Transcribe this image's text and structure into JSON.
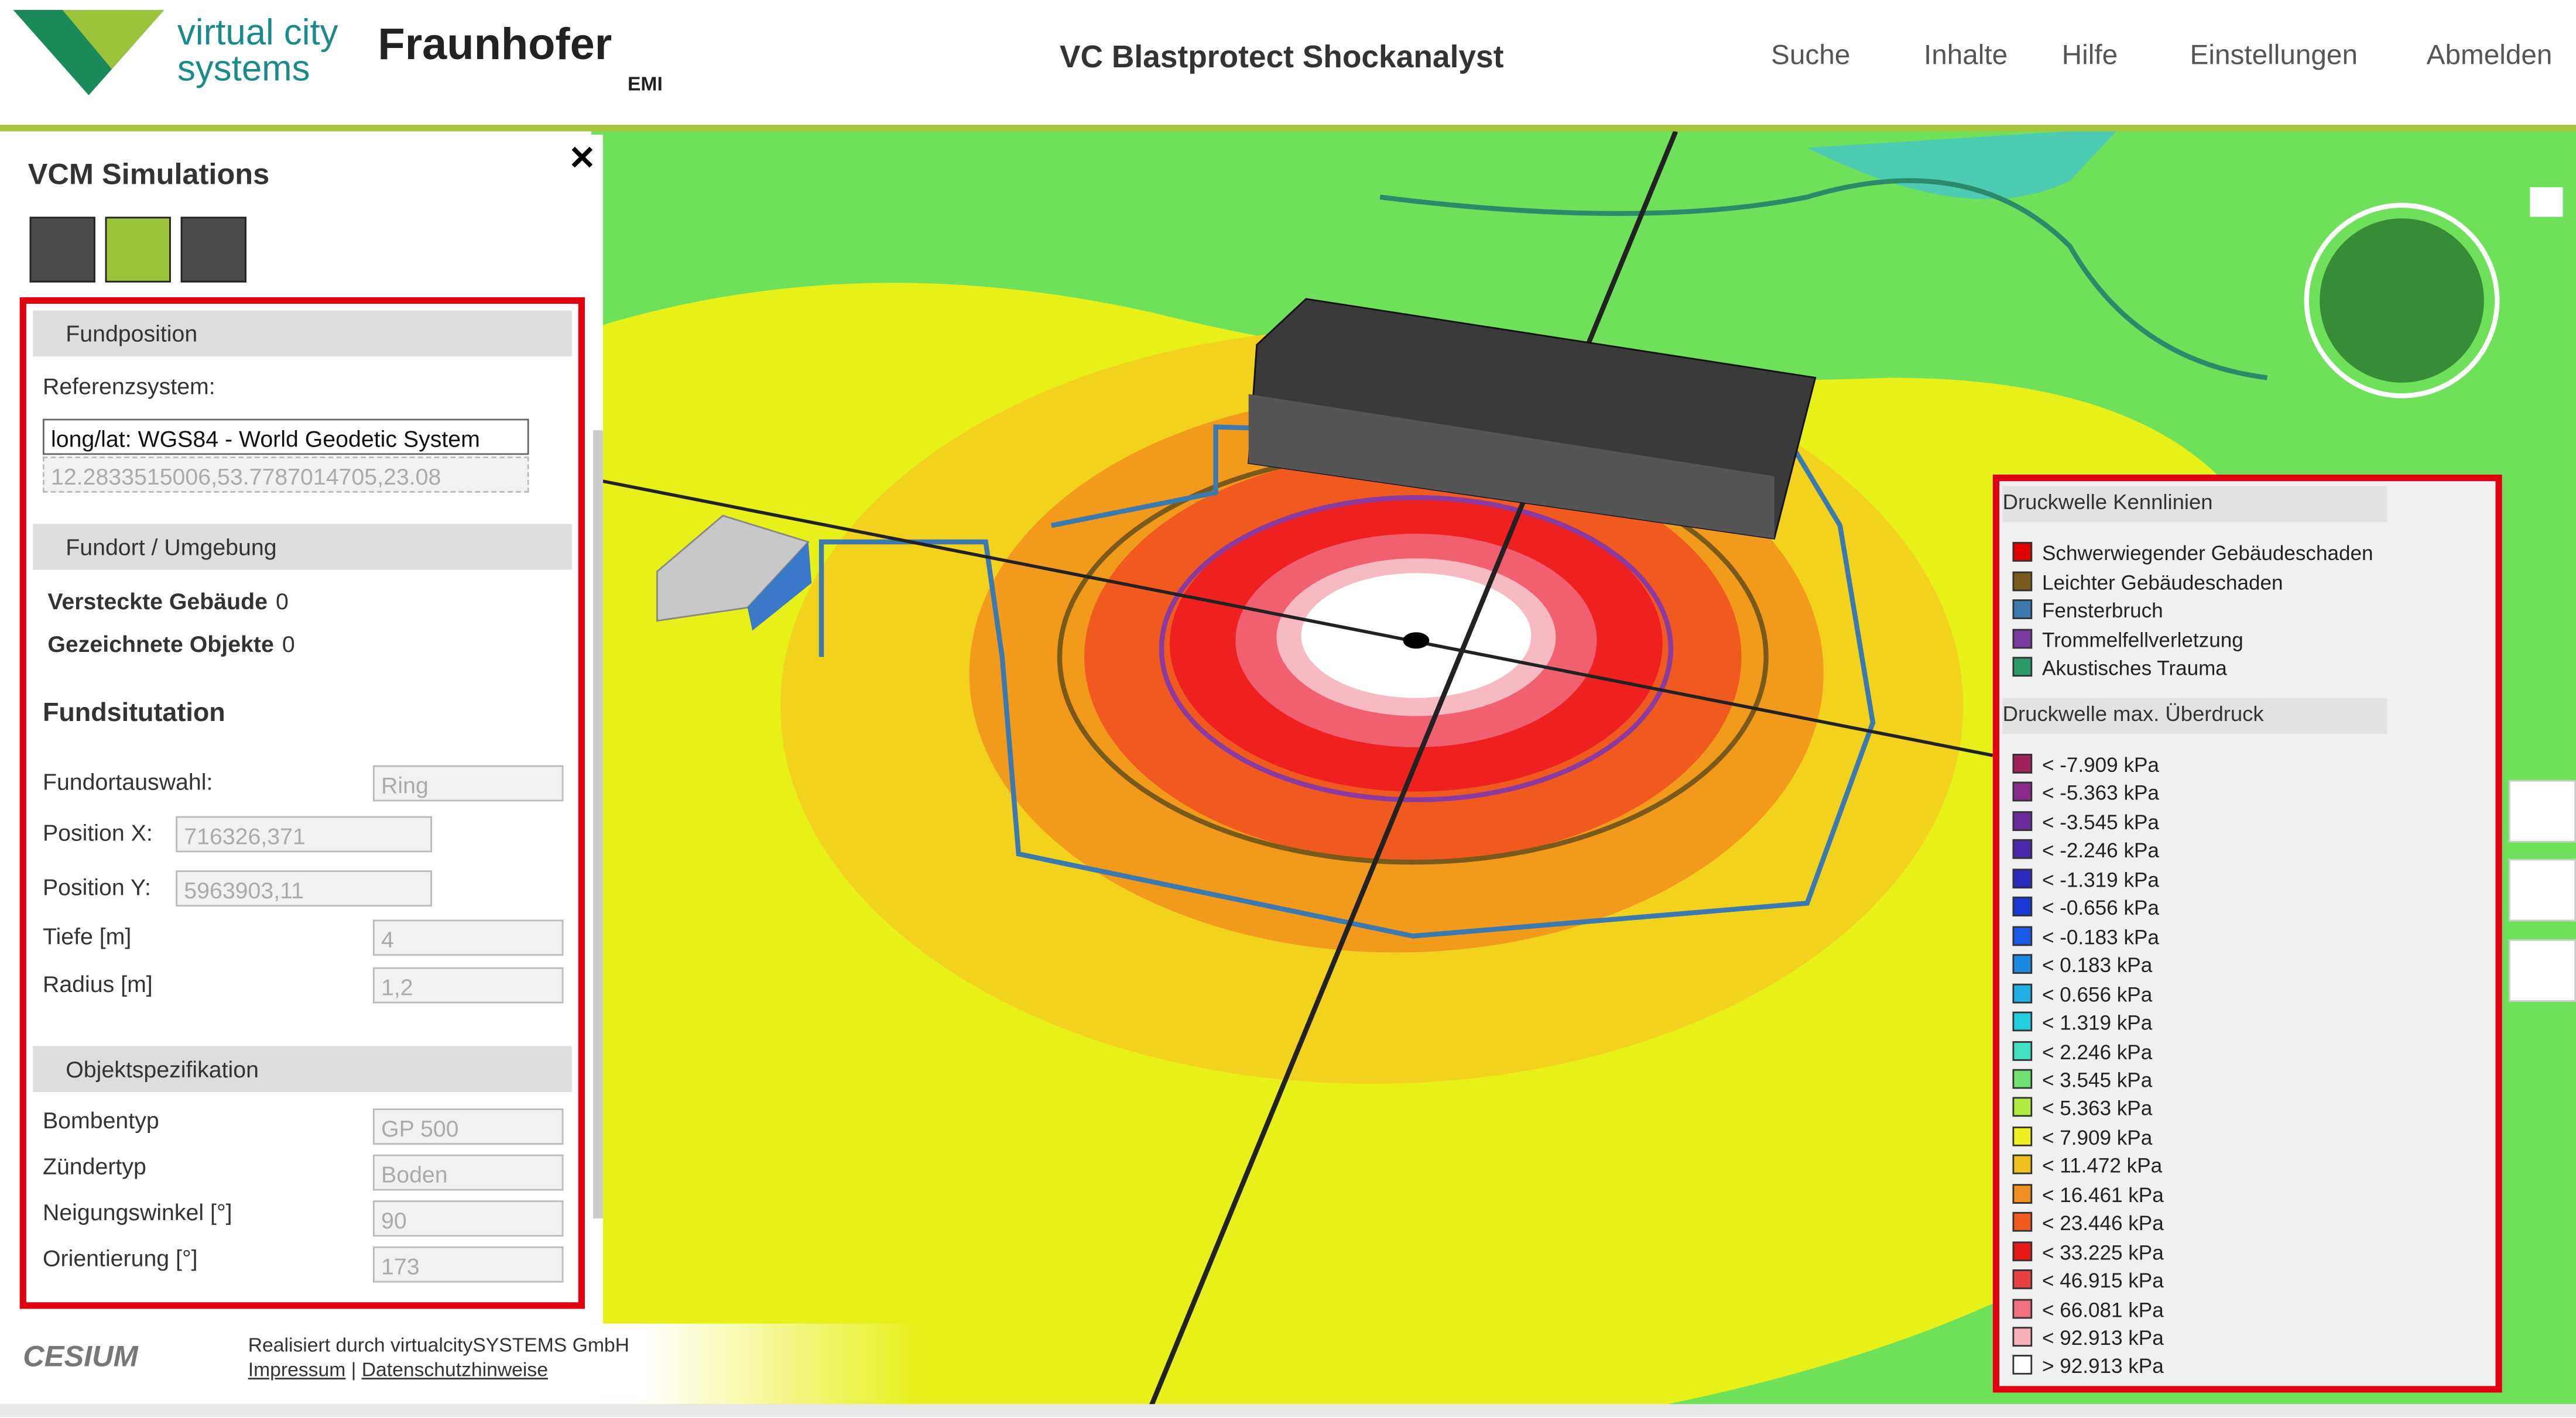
{
  "header": {
    "logo_line1": "virtual city",
    "logo_line2": "systems",
    "partner": "Fraunhofer",
    "partner_sub": "EMI",
    "title": "VC Blastprotect Shockanalyst",
    "nav": [
      "Suche",
      "Inhalte",
      "Hilfe",
      "Einstellungen",
      "Abmelden"
    ]
  },
  "panel": {
    "title": "VCM Simulations",
    "fundposition": {
      "heading": "Fundposition",
      "ref_label": "Referenzsystem:",
      "ref_select": "long/lat: WGS84 - World Geodetic System",
      "coords": "12.2833515006,53.7787014705,23.08"
    },
    "fundort": {
      "heading": "Fundort / Umgebung",
      "hidden_label": "Versteckte Gebäude",
      "hidden_value": "0",
      "drawn_label": "Gezeichnete Objekte",
      "drawn_value": "0",
      "situation": "Fundsitutation",
      "fields": [
        {
          "label": "Fundortauswahl:",
          "value": "Ring"
        },
        {
          "label": "Position X:",
          "value": "716326,371"
        },
        {
          "label": "Position Y:",
          "value": "5963903,11"
        },
        {
          "label": "Tiefe [m]",
          "value": "4"
        },
        {
          "label": "Radius [m]",
          "value": "1,2"
        }
      ]
    },
    "objekt": {
      "heading": "Objektspezifikation",
      "fields": [
        {
          "label": "Bombentyp",
          "value": "GP 500"
        },
        {
          "label": "Zündertyp",
          "value": "Boden"
        },
        {
          "label": "Neigungswinkel [°]",
          "value": "90"
        },
        {
          "label": "Orientierung [°]",
          "value": "173"
        }
      ]
    }
  },
  "footer": {
    "cesium": "CESIUM",
    "credit": "Realisiert durch virtualcitySYSTEMS GmbH",
    "links": [
      "Impressum",
      "Datenschutzhinweise"
    ]
  },
  "legend": {
    "kennlinien": {
      "title": "Druckwelle Kennlinien",
      "items": [
        {
          "label": "Schwerwiegender Gebäudeschaden",
          "color": "#e00000"
        },
        {
          "label": "Leichter Gebäudeschaden",
          "color": "#7a5a1a"
        },
        {
          "label": "Fensterbruch",
          "color": "#3a7ab0"
        },
        {
          "label": "Trommelfellverletzung",
          "color": "#7a3aa0"
        },
        {
          "label": "Akustisches Trauma",
          "color": "#2a9a6a"
        }
      ]
    },
    "ueberdruck": {
      "title": "Druckwelle max. Überdruck",
      "items": [
        {
          "label": "< -7.909 kPa",
          "color": "#a0205a"
        },
        {
          "label": "< -5.363 kPa",
          "color": "#8a2a8a"
        },
        {
          "label": "< -3.545 kPa",
          "color": "#6a2a9a"
        },
        {
          "label": "< -2.246 kPa",
          "color": "#4a2aaa"
        },
        {
          "label": "< -1.319 kPa",
          "color": "#2a2ac0"
        },
        {
          "label": "< -0.656 kPa",
          "color": "#1a3ad8"
        },
        {
          "label": "< -0.183 kPa",
          "color": "#1a5ae8"
        },
        {
          "label": "< 0.183 kPa",
          "color": "#1a8ae0"
        },
        {
          "label": "< 0.656 kPa",
          "color": "#20b0e8"
        },
        {
          "label": "< 1.319 kPa",
          "color": "#20d0e0"
        },
        {
          "label": "< 2.246 kPa",
          "color": "#40e0c0"
        },
        {
          "label": "< 3.545 kPa",
          "color": "#70e070"
        },
        {
          "label": "< 5.363 kPa",
          "color": "#b0ec40"
        },
        {
          "label": "< 7.909 kPa",
          "color": "#f0f020"
        },
        {
          "label": "< 11.472 kPa",
          "color": "#f0c020"
        },
        {
          "label": "< 16.461 kPa",
          "color": "#f09020"
        },
        {
          "label": "< 23.446 kPa",
          "color": "#f05a1e"
        },
        {
          "label": "< 33.225 kPa",
          "color": "#e81818"
        },
        {
          "label": "< 46.915 kPa",
          "color": "#e84040"
        },
        {
          "label": "< 66.081 kPa",
          "color": "#f07080"
        },
        {
          "label": "< 92.913 kPa",
          "color": "#f5b0b8"
        },
        {
          "label": "> 92.913 kPa",
          "color": "#ffffff"
        }
      ]
    }
  }
}
